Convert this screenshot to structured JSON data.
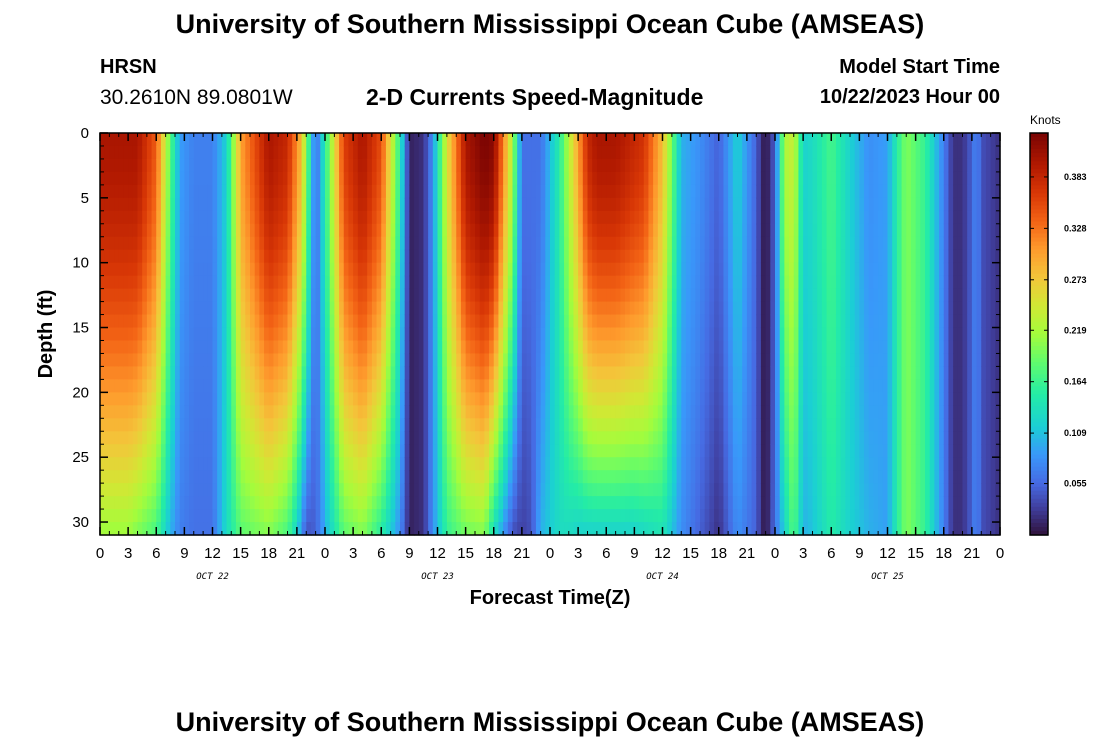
{
  "header": {
    "title": "University of Southern Mississippi Ocean Cube (AMSEAS)",
    "station": "HRSN",
    "coords": "30.2610N  89.0801W",
    "subtitle": "2-D Currents Speed-Magnitude",
    "model_start_label": "Model Start Time",
    "model_start_date": "10/22/2023 Hour 00"
  },
  "footer": {
    "title": "University of Southern Mississippi Ocean Cube (AMSEAS)"
  },
  "chart_data": {
    "type": "heatmap",
    "title": "2-D Currents Speed-Magnitude",
    "xlabel": "Forecast Time(Z)",
    "ylabel": "Depth (ft)",
    "x_ticks": [
      "0",
      "3",
      "6",
      "9",
      "12",
      "15",
      "18",
      "21",
      "0",
      "3",
      "6",
      "9",
      "12",
      "15",
      "18",
      "21",
      "0",
      "3",
      "6",
      "9",
      "12",
      "15",
      "18",
      "21",
      "0",
      "3",
      "6",
      "9",
      "12",
      "15",
      "18",
      "21",
      "0"
    ],
    "x_range_hours": [
      0,
      96
    ],
    "day_labels": [
      "OCT 22",
      "OCT 23",
      "OCT 24",
      "OCT 25"
    ],
    "y_ticks": [
      "0",
      "5",
      "10",
      "15",
      "20",
      "25",
      "30"
    ],
    "ylim_ft": [
      0,
      31
    ],
    "colorbar": {
      "units": "Knots",
      "range": [
        0,
        0.43
      ],
      "ticks": [
        "0.383",
        "0.328",
        "0.273",
        "0.219",
        "0.164",
        "0.109",
        "0.055"
      ],
      "tick_values": [
        0.383,
        0.328,
        0.273,
        0.219,
        0.164,
        0.109,
        0.055
      ]
    },
    "surface_speed_profile": {
      "hours": [
        0,
        4,
        6,
        7.5,
        8.5,
        10,
        12,
        13.5,
        15,
        18,
        20,
        21.5,
        23,
        24.5,
        26,
        28,
        30,
        32,
        33,
        34.5,
        35.5,
        37,
        39,
        41,
        42,
        44,
        45,
        47,
        49,
        51,
        52,
        53,
        55,
        58,
        60,
        62,
        64,
        66,
        68,
        70,
        70.5,
        71,
        72,
        73,
        74,
        74.5,
        75,
        76,
        78,
        80,
        82,
        84,
        85,
        86,
        88,
        90,
        91,
        92,
        93,
        93.5,
        94,
        96
      ],
      "speed_knots": [
        0.4,
        0.4,
        0.34,
        0.18,
        0.09,
        0.07,
        0.07,
        0.12,
        0.3,
        0.4,
        0.38,
        0.28,
        0.05,
        0.2,
        0.36,
        0.4,
        0.35,
        0.15,
        0.01,
        0.02,
        0.08,
        0.25,
        0.4,
        0.43,
        0.42,
        0.22,
        0.06,
        0.06,
        0.15,
        0.3,
        0.38,
        0.4,
        0.4,
        0.37,
        0.28,
        0.1,
        0.08,
        0.05,
        0.12,
        0.05,
        0.02,
        0.0,
        0.05,
        0.22,
        0.24,
        0.18,
        0.12,
        0.13,
        0.17,
        0.12,
        0.08,
        0.09,
        0.15,
        0.2,
        0.16,
        0.07,
        0.02,
        0.02,
        0.05,
        0.08,
        0.04,
        0.02
      ]
    },
    "bottom_speed_profile": {
      "hours": [
        0,
        3,
        6,
        7.5,
        8.5,
        10,
        12,
        13.5,
        15,
        18,
        20,
        21,
        22,
        23,
        24.5,
        26,
        28,
        30,
        32,
        33,
        34.5,
        35.5,
        37,
        39,
        41,
        42,
        44,
        45,
        46,
        47,
        49,
        50,
        51,
        54,
        57,
        60,
        62,
        64,
        66,
        68,
        70,
        70.5,
        71,
        72,
        73,
        74,
        74.5,
        75,
        76,
        78,
        80,
        82,
        84,
        85,
        86,
        88,
        90,
        91,
        92,
        93,
        93.5,
        94,
        96
      ],
      "speed_knots": [
        0.21,
        0.21,
        0.17,
        0.1,
        0.07,
        0.06,
        0.06,
        0.13,
        0.18,
        0.2,
        0.17,
        0.12,
        0.04,
        0.05,
        0.12,
        0.18,
        0.2,
        0.15,
        0.08,
        0.01,
        0.02,
        0.08,
        0.16,
        0.19,
        0.2,
        0.13,
        0.04,
        0.03,
        0.04,
        0.1,
        0.13,
        0.13,
        0.12,
        0.12,
        0.12,
        0.14,
        0.08,
        0.05,
        0.02,
        0.08,
        0.05,
        0.02,
        0.0,
        0.06,
        0.12,
        0.18,
        0.14,
        0.1,
        0.11,
        0.15,
        0.12,
        0.1,
        0.09,
        0.15,
        0.2,
        0.16,
        0.07,
        0.02,
        0.02,
        0.05,
        0.08,
        0.04,
        0.02
      ]
    }
  }
}
